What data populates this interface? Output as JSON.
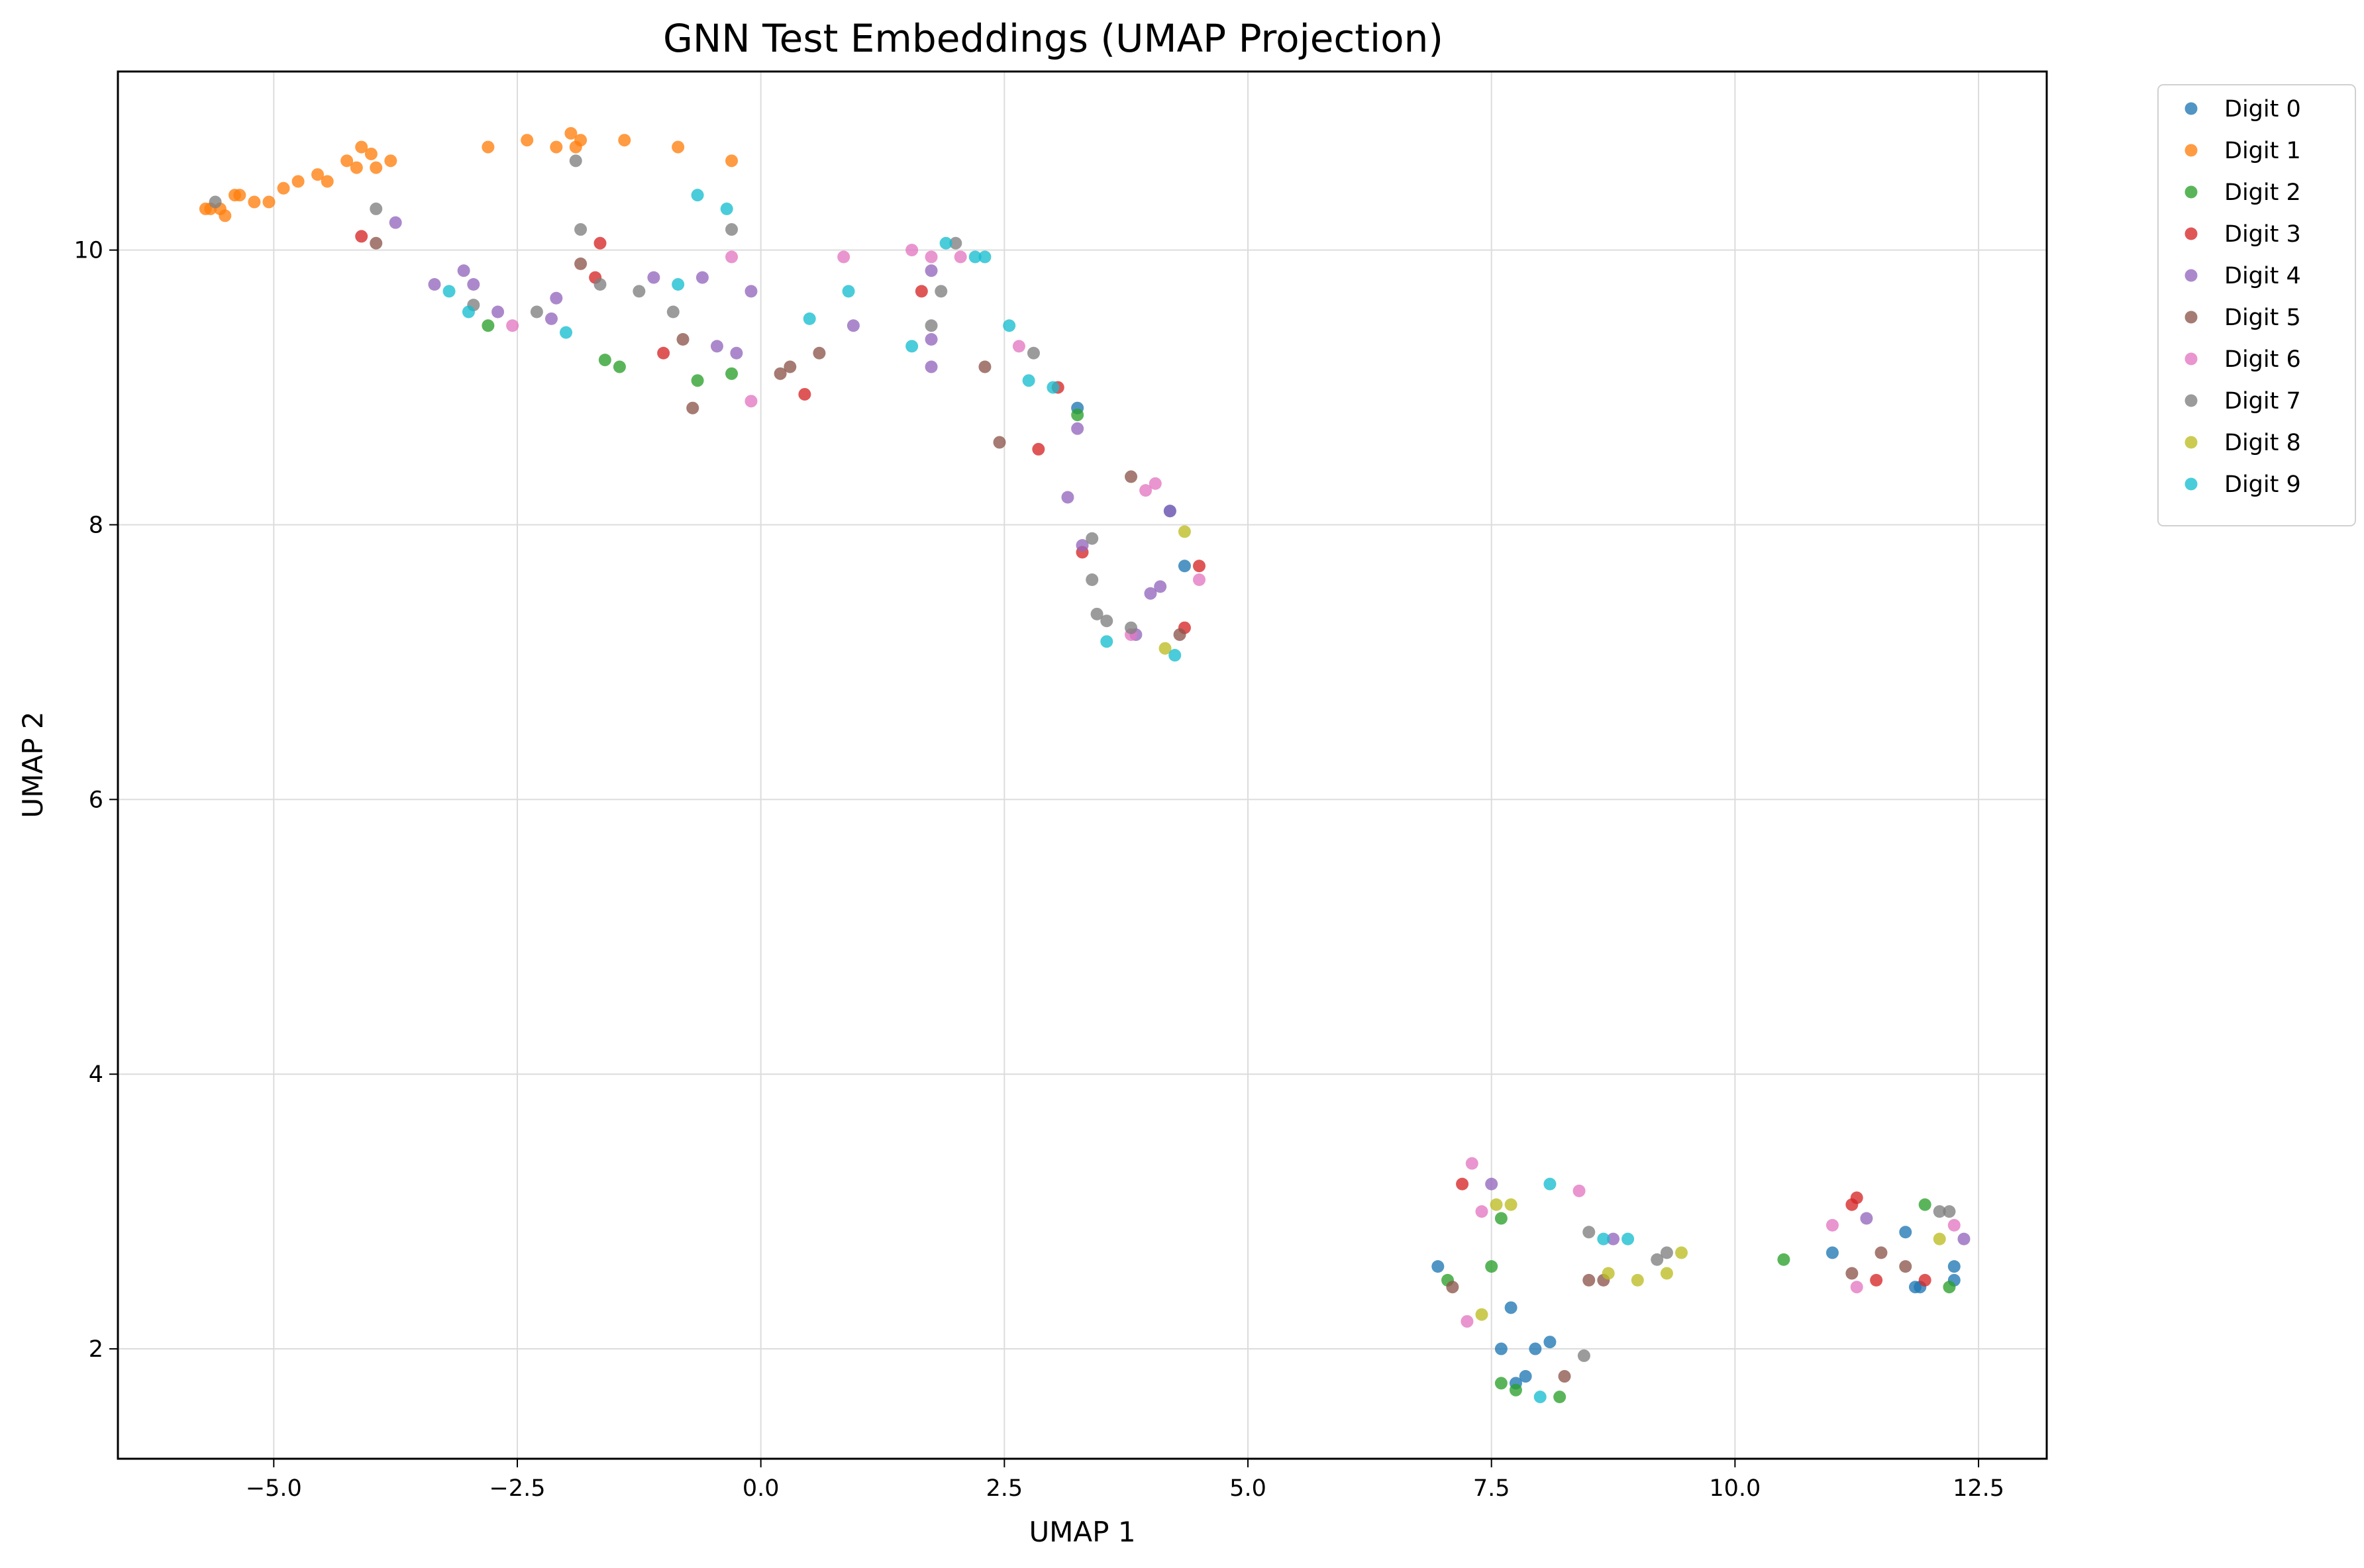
{
  "chart_data": {
    "type": "scatter",
    "title": "GNN Test Embeddings (UMAP Projection)",
    "xlabel": "UMAP 1",
    "ylabel": "UMAP 2",
    "xlim": [
      -6.6,
      13.2
    ],
    "ylim": [
      1.2,
      11.3
    ],
    "xticks": [
      -5.0,
      -2.5,
      0.0,
      2.5,
      5.0,
      7.5,
      10.0,
      12.5
    ],
    "xtick_labels": [
      "−5.0",
      "−2.5",
      "0.0",
      "2.5",
      "5.0",
      "7.5",
      "10.0",
      "12.5"
    ],
    "yticks": [
      2,
      4,
      6,
      8,
      10
    ],
    "ytick_labels": [
      "2",
      "4",
      "6",
      "8",
      "10"
    ],
    "grid": true,
    "legend_position": "outside-top-right",
    "series": [
      {
        "name": "Digit 0",
        "color": "#1f77b4",
        "points": [
          [
            4.2,
            8.1
          ],
          [
            4.35,
            7.7
          ],
          [
            3.25,
            8.85
          ],
          [
            6.95,
            2.6
          ],
          [
            7.7,
            2.3
          ],
          [
            7.6,
            2.0
          ],
          [
            7.95,
            2.0
          ],
          [
            8.1,
            2.05
          ],
          [
            7.75,
            1.75
          ],
          [
            7.85,
            1.8
          ],
          [
            11.0,
            2.7
          ],
          [
            11.75,
            2.85
          ],
          [
            11.85,
            2.45
          ],
          [
            11.9,
            2.45
          ],
          [
            12.25,
            2.6
          ],
          [
            12.25,
            2.5
          ]
        ]
      },
      {
        "name": "Digit 1",
        "color": "#ff7f0e",
        "points": [
          [
            -5.7,
            10.3
          ],
          [
            -5.65,
            10.3
          ],
          [
            -5.55,
            10.3
          ],
          [
            -5.5,
            10.25
          ],
          [
            -5.4,
            10.4
          ],
          [
            -5.35,
            10.4
          ],
          [
            -5.2,
            10.35
          ],
          [
            -5.05,
            10.35
          ],
          [
            -4.9,
            10.45
          ],
          [
            -4.75,
            10.5
          ],
          [
            -4.55,
            10.55
          ],
          [
            -4.45,
            10.5
          ],
          [
            -4.25,
            10.65
          ],
          [
            -4.15,
            10.6
          ],
          [
            -4.1,
            10.75
          ],
          [
            -4.0,
            10.7
          ],
          [
            -3.95,
            10.6
          ],
          [
            -3.8,
            10.65
          ],
          [
            -2.8,
            10.75
          ],
          [
            -2.4,
            10.8
          ],
          [
            -2.1,
            10.75
          ],
          [
            -1.95,
            10.85
          ],
          [
            -1.9,
            10.75
          ],
          [
            -1.85,
            10.8
          ],
          [
            -1.4,
            10.8
          ],
          [
            -0.85,
            10.75
          ],
          [
            -0.3,
            10.65
          ]
        ]
      },
      {
        "name": "Digit 2",
        "color": "#2ca02c",
        "points": [
          [
            -2.8,
            9.45
          ],
          [
            -1.6,
            9.2
          ],
          [
            -1.45,
            9.15
          ],
          [
            -0.65,
            9.05
          ],
          [
            -0.3,
            9.1
          ],
          [
            3.25,
            8.8
          ],
          [
            7.5,
            2.6
          ],
          [
            7.6,
            2.95
          ],
          [
            7.05,
            2.5
          ],
          [
            7.6,
            1.75
          ],
          [
            7.75,
            1.7
          ],
          [
            8.2,
            1.65
          ],
          [
            10.5,
            2.65
          ],
          [
            11.95,
            3.05
          ],
          [
            12.2,
            2.45
          ]
        ]
      },
      {
        "name": "Digit 3",
        "color": "#d62728",
        "points": [
          [
            -4.1,
            10.1
          ],
          [
            -1.7,
            9.8
          ],
          [
            -1.65,
            10.05
          ],
          [
            -1.0,
            9.25
          ],
          [
            0.45,
            8.95
          ],
          [
            1.65,
            9.7
          ],
          [
            3.05,
            9.0
          ],
          [
            2.85,
            8.55
          ],
          [
            3.3,
            7.8
          ],
          [
            4.5,
            7.7
          ],
          [
            4.35,
            7.25
          ],
          [
            7.2,
            3.2
          ],
          [
            11.2,
            3.05
          ],
          [
            11.25,
            3.1
          ],
          [
            11.45,
            2.5
          ],
          [
            11.95,
            2.5
          ]
        ]
      },
      {
        "name": "Digit 4",
        "color": "#9467bd",
        "points": [
          [
            -3.75,
            10.2
          ],
          [
            -3.35,
            9.75
          ],
          [
            -3.05,
            9.85
          ],
          [
            -2.95,
            9.75
          ],
          [
            -2.7,
            9.55
          ],
          [
            -2.15,
            9.5
          ],
          [
            -2.1,
            9.65
          ],
          [
            -1.1,
            9.8
          ],
          [
            -0.6,
            9.8
          ],
          [
            -0.45,
            9.3
          ],
          [
            -0.25,
            9.25
          ],
          [
            -0.1,
            9.7
          ],
          [
            0.95,
            9.45
          ],
          [
            1.75,
            9.85
          ],
          [
            1.75,
            9.35
          ],
          [
            1.75,
            9.15
          ],
          [
            3.15,
            8.2
          ],
          [
            3.25,
            8.7
          ],
          [
            3.3,
            7.85
          ],
          [
            3.85,
            7.2
          ],
          [
            4.0,
            7.5
          ],
          [
            4.1,
            7.55
          ],
          [
            4.2,
            8.1
          ],
          [
            7.5,
            3.2
          ],
          [
            8.75,
            2.8
          ],
          [
            11.35,
            2.95
          ],
          [
            12.35,
            2.8
          ]
        ]
      },
      {
        "name": "Digit 5",
        "color": "#8c564b",
        "points": [
          [
            -3.95,
            10.05
          ],
          [
            -1.85,
            9.9
          ],
          [
            -0.8,
            9.35
          ],
          [
            -0.7,
            8.85
          ],
          [
            0.2,
            9.1
          ],
          [
            0.3,
            9.15
          ],
          [
            0.6,
            9.25
          ],
          [
            2.3,
            9.15
          ],
          [
            2.45,
            8.6
          ],
          [
            3.8,
            8.35
          ],
          [
            4.3,
            7.2
          ],
          [
            7.1,
            2.45
          ],
          [
            8.5,
            2.5
          ],
          [
            8.65,
            2.5
          ],
          [
            8.25,
            1.8
          ],
          [
            11.2,
            2.55
          ],
          [
            11.5,
            2.7
          ],
          [
            11.75,
            2.6
          ]
        ]
      },
      {
        "name": "Digit 6",
        "color": "#e377c2",
        "points": [
          [
            -2.55,
            9.45
          ],
          [
            -0.3,
            9.95
          ],
          [
            -0.1,
            8.9
          ],
          [
            0.85,
            9.95
          ],
          [
            1.55,
            10.0
          ],
          [
            1.75,
            9.95
          ],
          [
            2.05,
            9.95
          ],
          [
            2.65,
            9.3
          ],
          [
            3.95,
            8.25
          ],
          [
            4.05,
            8.3
          ],
          [
            4.5,
            7.6
          ],
          [
            3.8,
            7.2
          ],
          [
            7.3,
            3.35
          ],
          [
            7.4,
            3.0
          ],
          [
            7.25,
            2.2
          ],
          [
            8.4,
            3.15
          ],
          [
            11.0,
            2.9
          ],
          [
            11.25,
            2.45
          ],
          [
            12.25,
            2.9
          ]
        ]
      },
      {
        "name": "Digit 7",
        "color": "#7f7f7f",
        "points": [
          [
            -5.6,
            10.35
          ],
          [
            -3.95,
            10.3
          ],
          [
            -2.95,
            9.6
          ],
          [
            -2.3,
            9.55
          ],
          [
            -1.9,
            10.65
          ],
          [
            -1.85,
            10.15
          ],
          [
            -1.65,
            9.75
          ],
          [
            -1.25,
            9.7
          ],
          [
            -0.9,
            9.55
          ],
          [
            -0.3,
            10.15
          ],
          [
            1.75,
            9.45
          ],
          [
            1.85,
            9.7
          ],
          [
            2.0,
            10.05
          ],
          [
            2.8,
            9.25
          ],
          [
            3.4,
            7.9
          ],
          [
            3.4,
            7.6
          ],
          [
            3.45,
            7.35
          ],
          [
            3.55,
            7.3
          ],
          [
            3.8,
            7.25
          ],
          [
            8.45,
            1.95
          ],
          [
            8.5,
            2.85
          ],
          [
            9.2,
            2.65
          ],
          [
            9.3,
            2.7
          ],
          [
            12.1,
            3.0
          ],
          [
            12.2,
            3.0
          ]
        ]
      },
      {
        "name": "Digit 8",
        "color": "#bcbd22",
        "points": [
          [
            4.35,
            7.95
          ],
          [
            4.15,
            7.1
          ],
          [
            7.4,
            2.25
          ],
          [
            7.55,
            3.05
          ],
          [
            7.7,
            3.05
          ],
          [
            8.7,
            2.55
          ],
          [
            9.0,
            2.5
          ],
          [
            9.3,
            2.55
          ],
          [
            9.45,
            2.7
          ],
          [
            12.1,
            2.8
          ]
        ]
      },
      {
        "name": "Digit 9",
        "color": "#17becf",
        "points": [
          [
            -0.65,
            10.4
          ],
          [
            -0.35,
            10.3
          ],
          [
            -0.85,
            9.75
          ],
          [
            -3.2,
            9.7
          ],
          [
            -3.0,
            9.55
          ],
          [
            -2.0,
            9.4
          ],
          [
            0.5,
            9.5
          ],
          [
            0.9,
            9.7
          ],
          [
            1.55,
            9.3
          ],
          [
            1.9,
            10.05
          ],
          [
            2.2,
            9.95
          ],
          [
            2.3,
            9.95
          ],
          [
            2.55,
            9.45
          ],
          [
            2.75,
            9.05
          ],
          [
            3.0,
            9.0
          ],
          [
            3.55,
            7.15
          ],
          [
            4.25,
            7.05
          ],
          [
            8.1,
            3.2
          ],
          [
            8.65,
            2.8
          ],
          [
            8.9,
            2.8
          ],
          [
            8.0,
            1.65
          ]
        ]
      }
    ]
  }
}
